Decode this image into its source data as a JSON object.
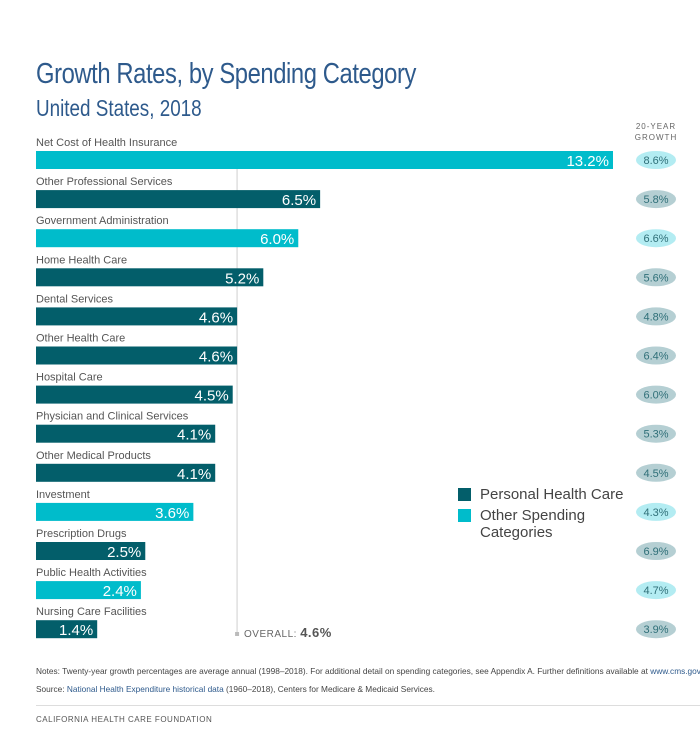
{
  "chart_data": {
    "type": "bar",
    "orientation": "horizontal",
    "title": "Growth Rates, by Spending Category",
    "subtitle": "United States, 2018",
    "unit": "%",
    "categories": [
      "Net Cost of Health Insurance",
      "Other Professional Services",
      "Government Administration",
      "Home Health Care",
      "Dental Services",
      "Other Health Care",
      "Hospital Care",
      "Physician and Clinical Services",
      "Other Medical Products",
      "Investment",
      "Prescription Drugs",
      "Public Health Activities",
      "Nursing Care Facilities"
    ],
    "values": [
      13.2,
      6.5,
      6.0,
      5.2,
      4.6,
      4.6,
      4.5,
      4.1,
      4.1,
      3.6,
      2.5,
      2.4,
      1.4
    ],
    "value_labels": [
      "13.2%",
      "6.5%",
      "6.0%",
      "5.2%",
      "4.6%",
      "4.6%",
      "4.5%",
      "4.1%",
      "4.1%",
      "3.6%",
      "2.5%",
      "2.4%",
      "1.4%"
    ],
    "groups": [
      "other",
      "personal",
      "other",
      "personal",
      "personal",
      "personal",
      "personal",
      "personal",
      "personal",
      "other",
      "personal",
      "other",
      "personal"
    ],
    "twenty_year_growth": [
      8.6,
      5.8,
      6.6,
      5.6,
      4.8,
      6.4,
      6.0,
      5.3,
      4.5,
      4.3,
      6.9,
      4.7,
      3.9
    ],
    "twenty_year_growth_labels": [
      "8.6%",
      "5.8%",
      "6.6%",
      "5.6%",
      "4.8%",
      "6.4%",
      "6.0%",
      "5.3%",
      "4.5%",
      "4.3%",
      "6.9%",
      "4.7%",
      "3.9%"
    ],
    "twenty_year_growth_header": [
      "20-YEAR",
      "GROWTH"
    ],
    "reference_line": {
      "label": "OVERALL:",
      "value": 4.6,
      "value_label": "4.6%"
    },
    "xlim": [
      0,
      13.2
    ],
    "grid": false,
    "legend": {
      "placement": "right",
      "entries": [
        {
          "key": "personal",
          "label": "Personal Health Care",
          "color": "#035e6a"
        },
        {
          "key": "other",
          "label": "Other Spending Categories",
          "color": "#00bccb"
        }
      ]
    },
    "pill_colors": {
      "personal": "#b5cfd3",
      "other": "#b3ecf2"
    }
  },
  "notes": {
    "notes_text": "Notes: Twenty-year growth percentages are average annual (1998–2018). For additional detail on spending categories, see Appendix A. Further definitions available at ",
    "notes_link": "www.cms.gov",
    "notes_end": ".",
    "source_prefix": "Source: ",
    "source_link": "National Health Expenditure historical data",
    "source_text": " (1960–2018), Centers for Medicare & Medicaid Services."
  },
  "footer": "CALIFORNIA HEALTH CARE FOUNDATION"
}
